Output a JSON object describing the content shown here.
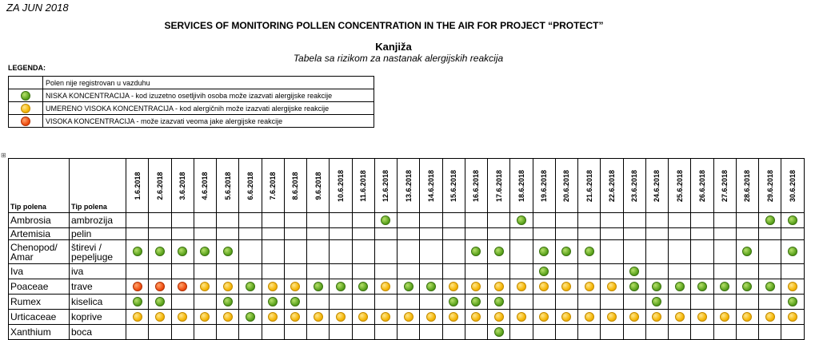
{
  "header": {
    "month": "ZA JUN 2018",
    "title": "SERVICES OF MONITORING POLLEN CONCENTRATION IN THE AIR FOR PROJECT “PROTECT”",
    "city": "Kanjiža",
    "subtitle": "Tabela sa rizikom za nastanak alergijskih reakcija"
  },
  "legend": {
    "title": "LEGENDA:",
    "items": [
      {
        "level": "none",
        "text": "Polen nije registrovan u vazduhu"
      },
      {
        "level": "low",
        "text": "NISKA KONCENTRACIJA - kod izuzetno  osetljivih osoba može izazvati  alergijske reakcije"
      },
      {
        "level": "medium",
        "text": "UMERENO VISOKA KONCENTRACIJA - kod alergičnih može izazvati alergijske reakcije"
      },
      {
        "level": "high",
        "text": "VISOKA KONCENTRACIJA - može izazvati  veoma jake alergijske reakcije"
      }
    ]
  },
  "colors": {
    "low": "#5aa21c",
    "medium": "#f4b400",
    "high": "#ee4b0e"
  },
  "table": {
    "col1_header": "Tip polena",
    "col2_header": "Tip polena",
    "dates": [
      "1.6.2018",
      "2.6.2018",
      "3.6.2018",
      "4.6.2018",
      "5.6.2018",
      "6.6.2018",
      "7.6.2018",
      "8.6.2018",
      "9.6.2018",
      "10.6.2018",
      "11.6.2018",
      "12.6.2018",
      "13.6.2018",
      "14.6.2018",
      "15.6.2018",
      "16.6.2018",
      "17.6.2018",
      "18.6.2018",
      "19.6.2018",
      "20.6.2018",
      "21.6.2018",
      "22.6.2018",
      "23.6.2018",
      "24.6.2018",
      "25.6.2018",
      "26.6.2018",
      "27.6.2018",
      "28.6.2018",
      "29.6.2018",
      "30.6.2018"
    ],
    "rows": [
      {
        "latin": "Ambrosia",
        "local": "ambrozija",
        "levels": [
          "",
          "",
          "",
          "",
          "",
          "",
          "",
          "",
          "",
          "",
          "",
          "g",
          "",
          "",
          "",
          "",
          "",
          "g",
          "",
          "",
          "",
          "",
          "",
          "",
          "",
          "",
          "",
          "",
          "g",
          "g"
        ]
      },
      {
        "latin": "Artemisia",
        "local": "pelin",
        "levels": [
          "",
          "",
          "",
          "",
          "",
          "",
          "",
          "",
          "",
          "",
          "",
          "",
          "",
          "",
          "",
          "",
          "",
          "",
          "",
          "",
          "",
          "",
          "",
          "",
          "",
          "",
          "",
          "",
          "",
          ""
        ]
      },
      {
        "latin": "Chenopod/ Amar",
        "local": "štirevi / pepeljuge",
        "levels": [
          "g",
          "g",
          "g",
          "g",
          "g",
          "",
          "",
          "",
          "",
          "",
          "",
          "",
          "",
          "",
          "",
          "g",
          "g",
          "",
          "g",
          "g",
          "g",
          "",
          "",
          "",
          "",
          "",
          "",
          "g",
          "",
          "g"
        ]
      },
      {
        "latin": "Iva",
        "local": "iva",
        "levels": [
          "",
          "",
          "",
          "",
          "",
          "",
          "",
          "",
          "",
          "",
          "",
          "",
          "",
          "",
          "",
          "",
          "",
          "",
          "g",
          "",
          "",
          "",
          "g",
          "",
          "",
          "",
          "",
          "",
          "",
          ""
        ]
      },
      {
        "latin": "Poaceae",
        "local": "trave",
        "levels": [
          "r",
          "r",
          "r",
          "y",
          "y",
          "g",
          "y",
          "y",
          "g",
          "g",
          "g",
          "y",
          "g",
          "g",
          "y",
          "y",
          "y",
          "y",
          "y",
          "y",
          "y",
          "y",
          "g",
          "g",
          "g",
          "g",
          "g",
          "g",
          "g",
          "y"
        ]
      },
      {
        "latin": "Rumex",
        "local": "kiselica",
        "levels": [
          "g",
          "g",
          "",
          "",
          "g",
          "",
          "g",
          "g",
          "",
          "",
          "",
          "",
          "",
          "",
          "g",
          "g",
          "g",
          "",
          "",
          "",
          "",
          "",
          "",
          "g",
          "",
          "",
          "",
          "",
          "",
          "g"
        ]
      },
      {
        "latin": "Urticaceae",
        "local": "koprive",
        "levels": [
          "y",
          "y",
          "y",
          "y",
          "y",
          "g",
          "y",
          "y",
          "y",
          "y",
          "y",
          "y",
          "y",
          "y",
          "y",
          "y",
          "y",
          "y",
          "y",
          "y",
          "y",
          "y",
          "y",
          "y",
          "y",
          "y",
          "y",
          "y",
          "y",
          "y"
        ]
      },
      {
        "latin": "Xanthium",
        "local": "boca",
        "levels": [
          "",
          "",
          "",
          "",
          "",
          "",
          "",
          "",
          "",
          "",
          "",
          "",
          "",
          "",
          "",
          "",
          "g",
          "",
          "",
          "",
          "",
          "",
          "",
          "",
          "",
          "",
          "",
          "",
          "",
          ""
        ]
      }
    ]
  }
}
